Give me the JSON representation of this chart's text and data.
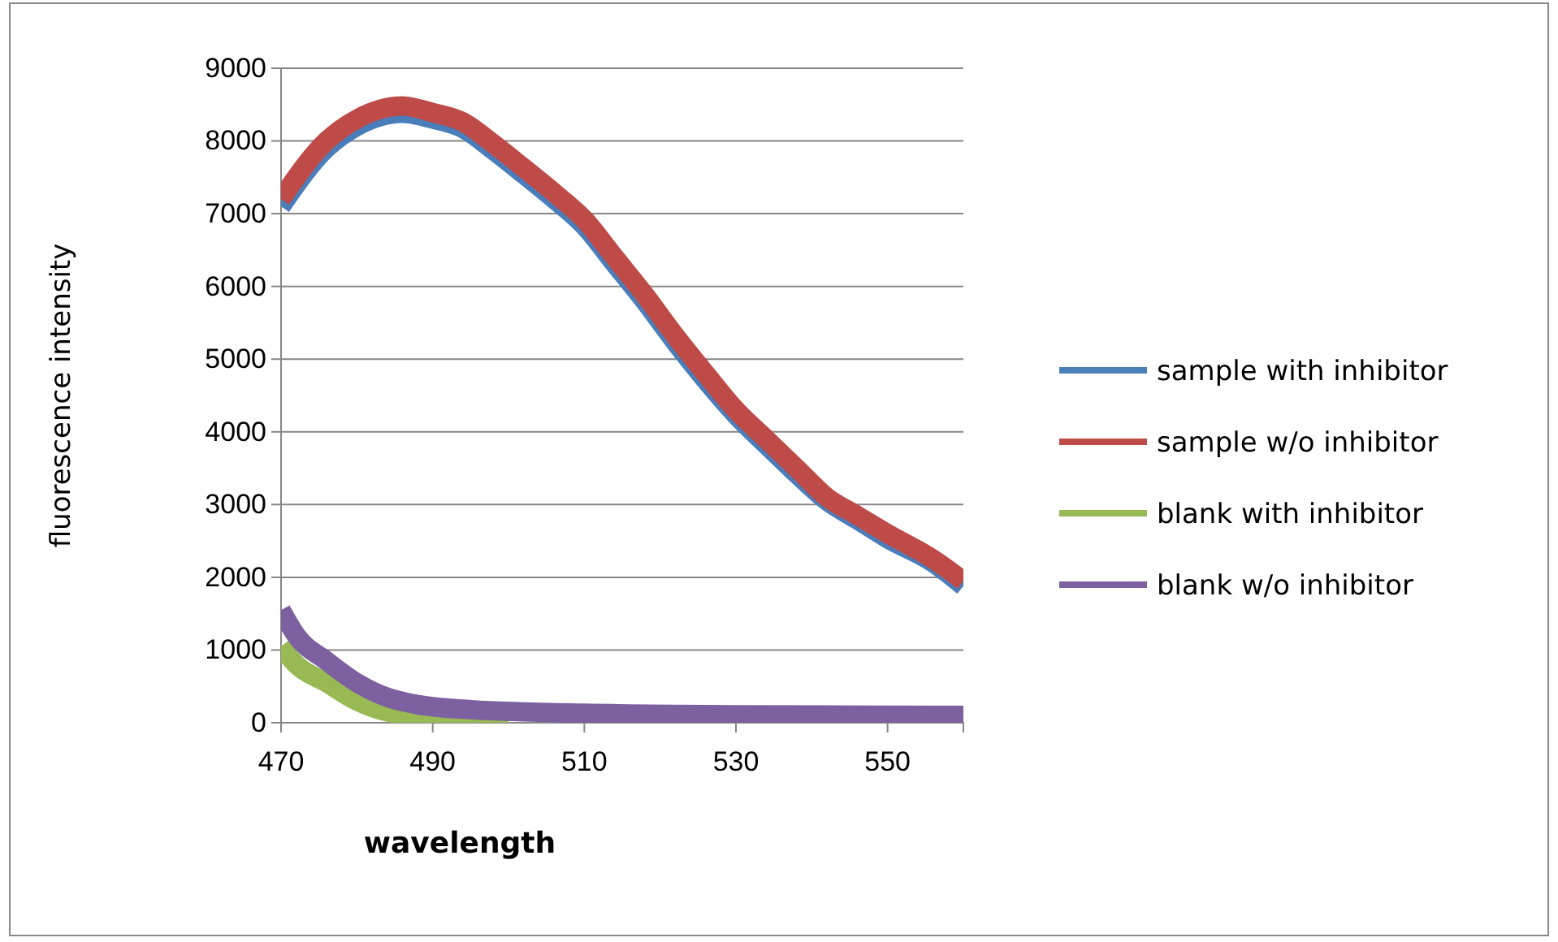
{
  "chart_data": {
    "type": "line",
    "xlabel": "wavelength",
    "ylabel": "fluorescence intensity",
    "xlim": [
      470,
      560
    ],
    "xticks": [
      470,
      490,
      510,
      530,
      550
    ],
    "ylim": [
      0,
      9000
    ],
    "yticks": [
      0,
      1000,
      2000,
      3000,
      4000,
      5000,
      6000,
      7000,
      8000,
      9000
    ],
    "grid": "y",
    "legend": "right",
    "marker": "none",
    "line_style": "solid",
    "x": [
      470,
      476,
      480,
      486,
      490,
      494,
      498,
      502,
      506,
      510,
      514,
      518,
      522,
      526,
      530,
      534,
      538,
      542,
      546,
      550,
      556,
      560
    ],
    "series": [
      {
        "name": "sample with inhibitor",
        "color": "#4a7ebb",
        "values": [
          7100,
          7900,
          8200,
          8380,
          8300,
          8170,
          7870,
          7540,
          7200,
          6830,
          6310,
          5790,
          5230,
          4710,
          4230,
          3820,
          3420,
          3050,
          2790,
          2530,
          2200,
          1880
        ]
      },
      {
        "name": "sample w/o inhibitor",
        "color": "#be4b48",
        "values": [
          7200,
          8000,
          8300,
          8480,
          8390,
          8260,
          7960,
          7630,
          7290,
          6920,
          6400,
          5880,
          5320,
          4800,
          4300,
          3900,
          3500,
          3100,
          2850,
          2600,
          2250,
          1950
        ]
      },
      {
        "name": "blank with inhibitor",
        "color": "#98b954",
        "x": [
          470,
          472,
          476,
          480,
          484,
          490,
          500
        ],
        "values": [
          1050,
          800,
          550,
          300,
          150,
          80,
          50
        ]
      },
      {
        "name": "blank w/o inhibitor",
        "color": "#7d60a0",
        "x": [
          470,
          472,
          476,
          480,
          484,
          488,
          495,
          510,
          530,
          560
        ],
        "values": [
          1550,
          1200,
          850,
          550,
          350,
          250,
          180,
          130,
          110,
          100
        ]
      }
    ]
  }
}
